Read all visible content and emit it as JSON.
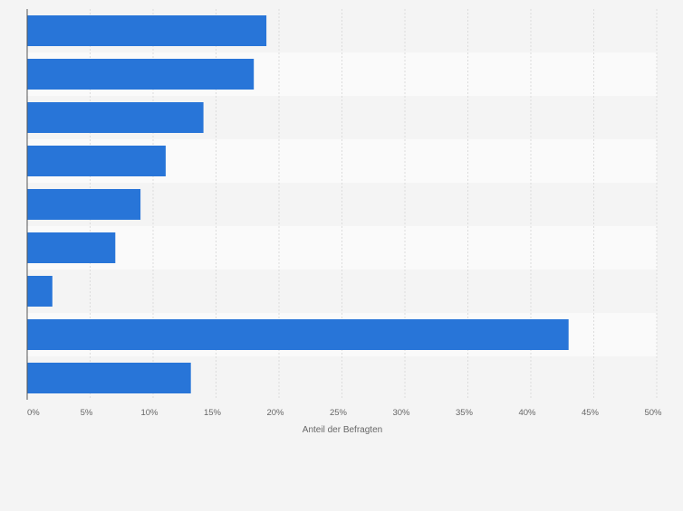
{
  "chart_data": {
    "type": "bar",
    "orientation": "horizontal",
    "categories": [
      "",
      "",
      "",
      "",
      "",
      "",
      "",
      "",
      ""
    ],
    "values": [
      19,
      18,
      14,
      11,
      9,
      7,
      2,
      43,
      13
    ],
    "xlabel": "Anteil der Befragten",
    "ylabel": "",
    "xlim": [
      0,
      50
    ],
    "x_ticks": [
      0,
      5,
      10,
      15,
      20,
      25,
      30,
      35,
      40,
      45,
      50
    ],
    "x_tick_labels": [
      "0%",
      "5%",
      "10%",
      "15%",
      "20%",
      "25%",
      "30%",
      "35%",
      "40%",
      "45%",
      "50%"
    ],
    "grid": true,
    "legend": "none",
    "bar_color": "#2875d8",
    "band_colors": [
      "#f4f4f4",
      "#fafafa"
    ],
    "gridline_color": "#dcdcdc",
    "axis_color": "#555555",
    "label_color": "#666666"
  }
}
